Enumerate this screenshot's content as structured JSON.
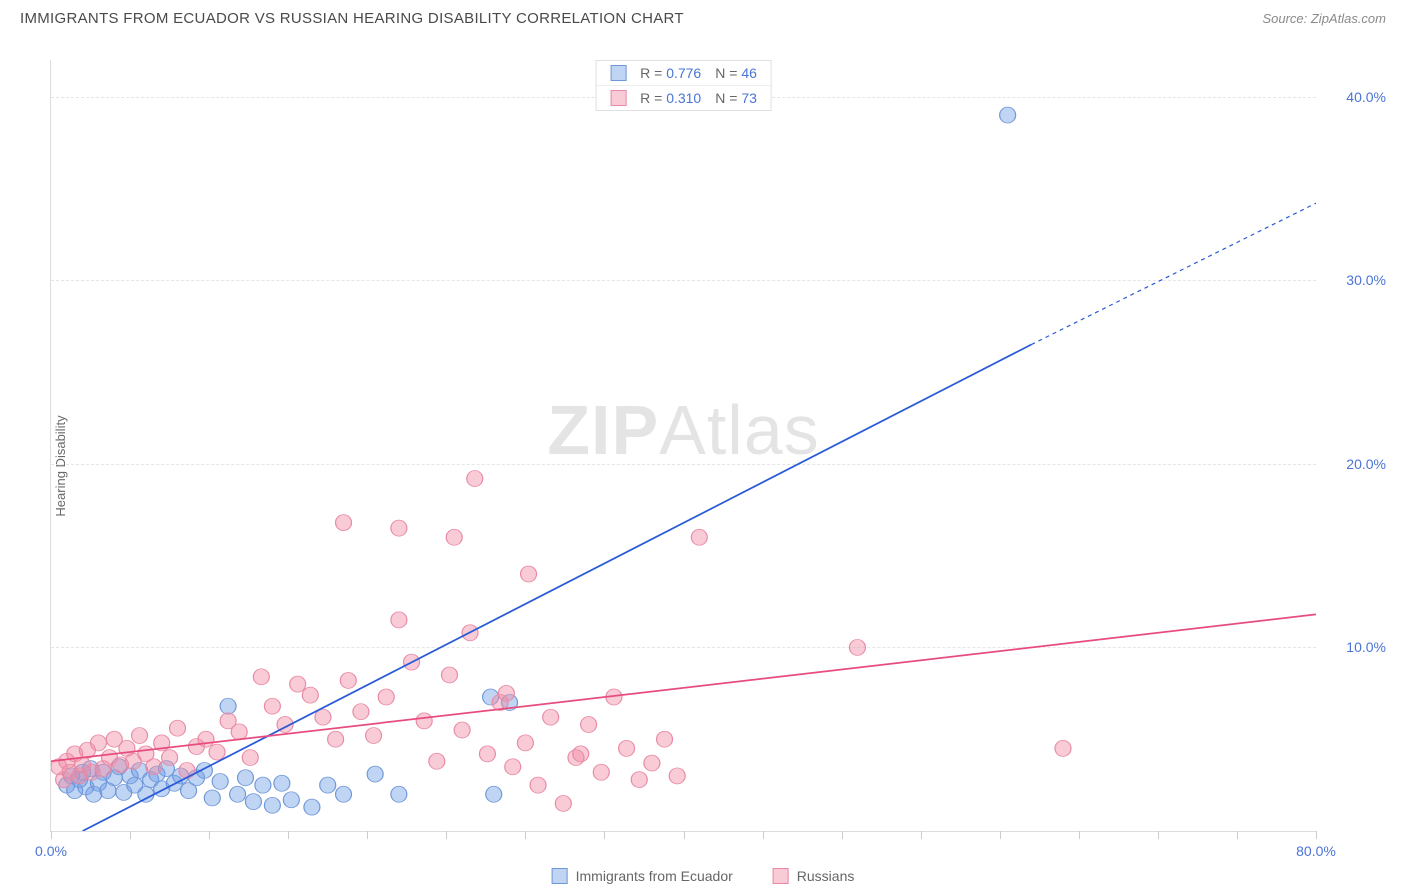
{
  "header": {
    "title": "IMMIGRANTS FROM ECUADOR VS RUSSIAN HEARING DISABILITY CORRELATION CHART",
    "source_prefix": "Source: ",
    "source_name": "ZipAtlas.com"
  },
  "watermark": {
    "part1": "ZIP",
    "part2": "Atlas"
  },
  "chart": {
    "type": "scatter-with-regression",
    "y_axis_label": "Hearing Disability",
    "background_color": "#ffffff",
    "grid_color": "#e5e5e5",
    "axis_color": "#dddddd",
    "tick_label_color": "#4a74d6",
    "xlim": [
      0,
      80
    ],
    "ylim": [
      0,
      42
    ],
    "y_ticks": [
      {
        "value": 10,
        "label": "10.0%"
      },
      {
        "value": 20,
        "label": "20.0%"
      },
      {
        "value": 30,
        "label": "30.0%"
      },
      {
        "value": 40,
        "label": "40.0%"
      }
    ],
    "x_ticks": [
      0,
      5,
      10,
      15,
      20,
      25,
      30,
      35,
      40,
      45,
      50,
      55,
      60,
      65,
      70,
      75,
      80
    ],
    "x_tick_labels": [
      {
        "value": 0,
        "label": "0.0%"
      },
      {
        "value": 80,
        "label": "80.0%"
      }
    ],
    "series": [
      {
        "id": "ecuador",
        "name": "Immigrants from Ecuador",
        "color_fill": "rgba(115,160,230,0.45)",
        "color_stroke": "#6f98d8",
        "line_color": "#2a5bd7",
        "line_width": 2.2,
        "marker_radius": 8,
        "stats": {
          "R": "0.776",
          "N": "46"
        },
        "regression": {
          "x1": 2,
          "y1": 0,
          "x2": 62,
          "y2": 26.5,
          "dash_from_x": 62,
          "dash_to_x": 80,
          "dash_to_y": 34.2
        },
        "points": [
          [
            1.0,
            2.5
          ],
          [
            1.3,
            3.0
          ],
          [
            1.5,
            2.2
          ],
          [
            1.8,
            2.8
          ],
          [
            2.0,
            3.2
          ],
          [
            2.2,
            2.4
          ],
          [
            2.5,
            3.4
          ],
          [
            2.7,
            2.0
          ],
          [
            3.0,
            2.6
          ],
          [
            3.3,
            3.2
          ],
          [
            3.6,
            2.2
          ],
          [
            4.0,
            2.9
          ],
          [
            4.3,
            3.5
          ],
          [
            4.6,
            2.1
          ],
          [
            5.0,
            3.0
          ],
          [
            5.3,
            2.5
          ],
          [
            5.6,
            3.3
          ],
          [
            6.0,
            2.0
          ],
          [
            6.3,
            2.8
          ],
          [
            6.7,
            3.1
          ],
          [
            7.0,
            2.3
          ],
          [
            7.3,
            3.4
          ],
          [
            7.8,
            2.6
          ],
          [
            8.2,
            3.0
          ],
          [
            8.7,
            2.2
          ],
          [
            9.2,
            2.9
          ],
          [
            9.7,
            3.3
          ],
          [
            10.2,
            1.8
          ],
          [
            10.7,
            2.7
          ],
          [
            11.2,
            6.8
          ],
          [
            11.8,
            2.0
          ],
          [
            12.3,
            2.9
          ],
          [
            12.8,
            1.6
          ],
          [
            13.4,
            2.5
          ],
          [
            14.0,
            1.4
          ],
          [
            14.6,
            2.6
          ],
          [
            15.2,
            1.7
          ],
          [
            16.5,
            1.3
          ],
          [
            17.5,
            2.5
          ],
          [
            18.5,
            2.0
          ],
          [
            20.5,
            3.1
          ],
          [
            22.0,
            2.0
          ],
          [
            27.8,
            7.3
          ],
          [
            28.0,
            2.0
          ],
          [
            29.0,
            7.0
          ],
          [
            60.5,
            39.0
          ]
        ]
      },
      {
        "id": "russians",
        "name": "Russians",
        "color_fill": "rgba(240,140,165,0.45)",
        "color_stroke": "#e88aa5",
        "line_color": "#e84c7f",
        "line_width": 2.2,
        "marker_radius": 8,
        "stats": {
          "R": "0.310",
          "N": "73"
        },
        "regression": {
          "x1": 0,
          "y1": 3.8,
          "x2": 80,
          "y2": 11.8
        },
        "points": [
          [
            0.5,
            3.5
          ],
          [
            0.8,
            2.8
          ],
          [
            1.0,
            3.8
          ],
          [
            1.2,
            3.2
          ],
          [
            1.5,
            4.2
          ],
          [
            1.8,
            3.0
          ],
          [
            2.0,
            3.6
          ],
          [
            2.3,
            4.4
          ],
          [
            2.6,
            3.2
          ],
          [
            3.0,
            4.8
          ],
          [
            3.3,
            3.4
          ],
          [
            3.7,
            4.0
          ],
          [
            4.0,
            5.0
          ],
          [
            4.4,
            3.6
          ],
          [
            4.8,
            4.5
          ],
          [
            5.2,
            3.8
          ],
          [
            5.6,
            5.2
          ],
          [
            6.0,
            4.2
          ],
          [
            6.5,
            3.5
          ],
          [
            7.0,
            4.8
          ],
          [
            7.5,
            4.0
          ],
          [
            8.0,
            5.6
          ],
          [
            8.6,
            3.3
          ],
          [
            9.2,
            4.6
          ],
          [
            9.8,
            5.0
          ],
          [
            10.5,
            4.3
          ],
          [
            11.2,
            6.0
          ],
          [
            11.9,
            5.4
          ],
          [
            12.6,
            4.0
          ],
          [
            13.3,
            8.4
          ],
          [
            14.0,
            6.8
          ],
          [
            14.8,
            5.8
          ],
          [
            15.6,
            8.0
          ],
          [
            16.4,
            7.4
          ],
          [
            17.2,
            6.2
          ],
          [
            18.0,
            5.0
          ],
          [
            18.5,
            16.8
          ],
          [
            18.8,
            8.2
          ],
          [
            19.6,
            6.5
          ],
          [
            20.4,
            5.2
          ],
          [
            21.2,
            7.3
          ],
          [
            22.0,
            11.5
          ],
          [
            22.0,
            16.5
          ],
          [
            22.8,
            9.2
          ],
          [
            23.6,
            6.0
          ],
          [
            24.4,
            3.8
          ],
          [
            25.2,
            8.5
          ],
          [
            25.5,
            16.0
          ],
          [
            26.0,
            5.5
          ],
          [
            26.5,
            10.8
          ],
          [
            26.8,
            19.2
          ],
          [
            27.6,
            4.2
          ],
          [
            28.4,
            7.0
          ],
          [
            28.8,
            7.5
          ],
          [
            29.2,
            3.5
          ],
          [
            30.0,
            4.8
          ],
          [
            30.2,
            14.0
          ],
          [
            30.8,
            2.5
          ],
          [
            31.6,
            6.2
          ],
          [
            32.4,
            1.5
          ],
          [
            33.2,
            4.0
          ],
          [
            34.0,
            5.8
          ],
          [
            34.8,
            3.2
          ],
          [
            35.6,
            7.3
          ],
          [
            36.4,
            4.5
          ],
          [
            37.2,
            2.8
          ],
          [
            38.0,
            3.7
          ],
          [
            38.8,
            5.0
          ],
          [
            39.6,
            3.0
          ],
          [
            41.0,
            16.0
          ],
          [
            51.0,
            10.0
          ],
          [
            64.0,
            4.5
          ],
          [
            33.5,
            4.2
          ]
        ]
      }
    ]
  },
  "legend_top": {
    "r_label": "R =",
    "n_label": "N ="
  }
}
